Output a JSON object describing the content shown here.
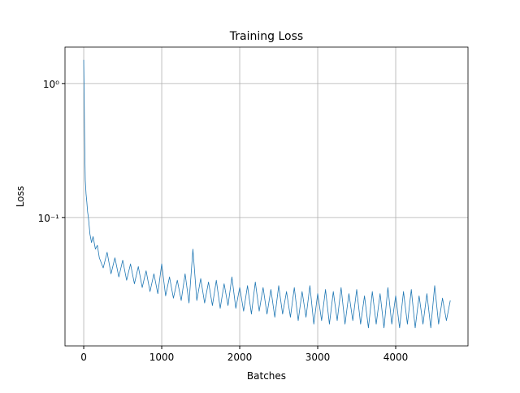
{
  "chart_data": {
    "type": "line",
    "title": "Training Loss",
    "x_label": "Batches",
    "y_label": "Loss",
    "log_y": true,
    "grid": true,
    "xlim": [
      -240,
      4927
    ],
    "ylim": [
      0.011,
      1.87
    ],
    "xticks": [
      0,
      1000,
      2000,
      3000,
      4000
    ],
    "yticks": [
      {
        "value": 1,
        "label": "10⁰"
      },
      {
        "value": 0.1,
        "label": "10⁻¹"
      }
    ],
    "x": [
      0,
      5,
      10,
      15,
      20,
      30,
      40,
      50,
      60,
      80,
      100,
      120,
      150,
      175,
      200,
      250,
      300,
      350,
      400,
      450,
      500,
      550,
      600,
      650,
      700,
      750,
      800,
      850,
      900,
      950,
      1000,
      1050,
      1100,
      1150,
      1200,
      1250,
      1300,
      1350,
      1400,
      1450,
      1500,
      1550,
      1600,
      1650,
      1700,
      1750,
      1800,
      1850,
      1900,
      1950,
      2000,
      2050,
      2100,
      2150,
      2200,
      2250,
      2300,
      2350,
      2400,
      2450,
      2500,
      2550,
      2600,
      2650,
      2700,
      2750,
      2800,
      2850,
      2900,
      2950,
      3000,
      3050,
      3100,
      3150,
      3200,
      3250,
      3300,
      3350,
      3400,
      3450,
      3500,
      3550,
      3600,
      3650,
      3700,
      3750,
      3800,
      3850,
      3900,
      3950,
      4000,
      4050,
      4100,
      4150,
      4200,
      4250,
      4300,
      4350,
      4400,
      4450,
      4500,
      4550,
      4600,
      4650,
      4700
    ],
    "series": [
      {
        "color": "#1f77b4",
        "values": [
          1.5,
          0.9,
          0.45,
          0.28,
          0.19,
          0.15,
          0.13,
          0.11,
          0.1,
          0.075,
          0.065,
          0.072,
          0.058,
          0.062,
          0.05,
          0.042,
          0.055,
          0.038,
          0.05,
          0.036,
          0.048,
          0.034,
          0.045,
          0.032,
          0.043,
          0.03,
          0.04,
          0.028,
          0.038,
          0.027,
          0.045,
          0.026,
          0.036,
          0.025,
          0.034,
          0.024,
          0.038,
          0.023,
          0.058,
          0.024,
          0.035,
          0.023,
          0.033,
          0.022,
          0.034,
          0.021,
          0.032,
          0.022,
          0.036,
          0.021,
          0.03,
          0.02,
          0.031,
          0.019,
          0.033,
          0.02,
          0.03,
          0.019,
          0.029,
          0.018,
          0.031,
          0.019,
          0.028,
          0.018,
          0.03,
          0.017,
          0.028,
          0.018,
          0.031,
          0.016,
          0.027,
          0.017,
          0.029,
          0.016,
          0.028,
          0.017,
          0.03,
          0.016,
          0.027,
          0.017,
          0.029,
          0.016,
          0.026,
          0.015,
          0.028,
          0.016,
          0.027,
          0.015,
          0.03,
          0.016,
          0.026,
          0.015,
          0.028,
          0.016,
          0.029,
          0.015,
          0.026,
          0.016,
          0.027,
          0.015,
          0.031,
          0.016,
          0.025,
          0.017,
          0.024
        ]
      }
    ]
  }
}
